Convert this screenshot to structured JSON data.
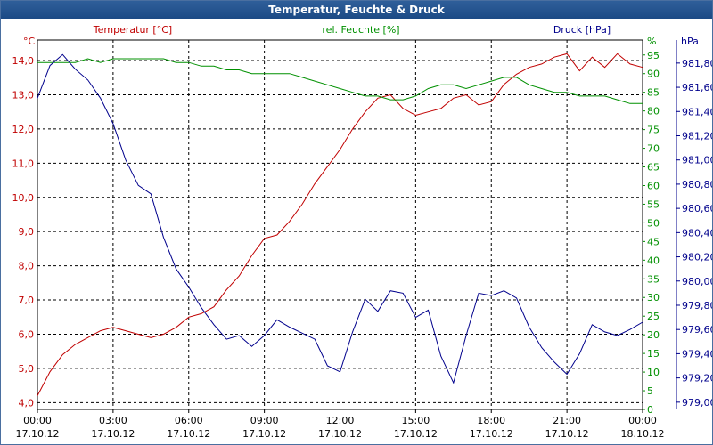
{
  "title": "Temperatur, Feuchte & Druck",
  "colors": {
    "temperature": "#c00000",
    "humidity": "#009000",
    "pressure": "#00008c",
    "grid": "#000000",
    "title_bg": "#1c4a85"
  },
  "chart_data": {
    "type": "line",
    "title": "Temperatur, Feuchte & Druck",
    "grid": true,
    "x_axis": {
      "range": [
        "17.10.12 00:00",
        "18.10.12 00:00"
      ],
      "ticks": [
        {
          "time": "00:00",
          "date": "17.10.12"
        },
        {
          "time": "03:00",
          "date": "17.10.12"
        },
        {
          "time": "06:00",
          "date": "17.10.12"
        },
        {
          "time": "09:00",
          "date": "17.10.12"
        },
        {
          "time": "12:00",
          "date": "17.10.12"
        },
        {
          "time": "15:00",
          "date": "17.10.12"
        },
        {
          "time": "18:00",
          "date": "17.10.12"
        },
        {
          "time": "21:00",
          "date": "17.10.12"
        },
        {
          "time": "00:00",
          "date": "18.10.12"
        }
      ]
    },
    "axes": {
      "temperature": {
        "label": "Temperatur [°C]",
        "unit": "°C",
        "range": [
          3.8,
          14.6
        ],
        "ticks": [
          "4,0",
          "5,0",
          "6,0",
          "7,0",
          "8,0",
          "9,0",
          "10,0",
          "11,0",
          "12,0",
          "13,0",
          "14,0"
        ],
        "tick_values": [
          4,
          5,
          6,
          7,
          8,
          9,
          10,
          11,
          12,
          13,
          14
        ]
      },
      "humidity": {
        "label": "rel. Feuchte [%]",
        "unit": "%",
        "range": [
          0,
          99
        ],
        "ticks": [
          "0",
          "5",
          "10",
          "15",
          "20",
          "25",
          "30",
          "35",
          "40",
          "45",
          "50",
          "55",
          "60",
          "65",
          "70",
          "75",
          "80",
          "85",
          "90",
          "95"
        ],
        "tick_values": [
          0,
          5,
          10,
          15,
          20,
          25,
          30,
          35,
          40,
          45,
          50,
          55,
          60,
          65,
          70,
          75,
          80,
          85,
          90,
          95
        ]
      },
      "pressure": {
        "label": "Druck [hPa]",
        "unit": "hPa",
        "range": [
          978.94,
          981.99
        ],
        "ticks": [
          "979,00",
          "979,20",
          "979,40",
          "979,60",
          "979,80",
          "980,00",
          "980,20",
          "980,40",
          "980,60",
          "980,80",
          "981,00",
          "981,20",
          "981,40",
          "981,60",
          "981,80"
        ],
        "tick_values": [
          979.0,
          979.2,
          979.4,
          979.6,
          979.8,
          980.0,
          980.2,
          980.4,
          980.6,
          980.8,
          981.0,
          981.2,
          981.4,
          981.6,
          981.8
        ]
      }
    },
    "series": [
      {
        "name": "Temperatur [°C]",
        "axis": "temperature",
        "x": [
          0,
          0.5,
          1,
          1.5,
          2,
          2.5,
          3,
          3.5,
          4,
          4.5,
          5,
          5.5,
          6,
          6.5,
          7,
          7.5,
          8,
          8.5,
          9,
          9.5,
          10,
          10.5,
          11,
          11.5,
          12,
          12.5,
          13,
          13.5,
          14,
          14.5,
          15,
          15.5,
          16,
          16.5,
          17,
          17.5,
          18,
          18.5,
          19,
          19.5,
          20,
          20.5,
          21,
          21.5,
          22,
          22.5,
          23,
          23.5,
          24
        ],
        "y": [
          4.2,
          4.9,
          5.4,
          5.7,
          5.9,
          6.1,
          6.2,
          6.1,
          6.0,
          5.9,
          6.0,
          6.2,
          6.5,
          6.6,
          6.8,
          7.3,
          7.7,
          8.3,
          8.8,
          8.9,
          9.3,
          9.8,
          10.4,
          10.9,
          11.4,
          12.0,
          12.5,
          12.9,
          13.0,
          12.6,
          12.4,
          12.5,
          12.6,
          12.9,
          13.0,
          12.7,
          12.8,
          13.3,
          13.6,
          13.8,
          13.9,
          14.1,
          14.2,
          13.7,
          14.1,
          13.8,
          14.2,
          13.9,
          13.8
        ]
      },
      {
        "name": "rel. Feuchte [%]",
        "axis": "humidity",
        "x": [
          0,
          0.5,
          1,
          1.5,
          2,
          2.5,
          3,
          3.5,
          4,
          4.5,
          5,
          5.5,
          6,
          6.5,
          7,
          7.5,
          8,
          8.5,
          9,
          9.5,
          10,
          10.5,
          11,
          11.5,
          12,
          12.5,
          13,
          13.5,
          14,
          14.5,
          15,
          15.5,
          16,
          16.5,
          17,
          17.5,
          18,
          18.5,
          19,
          19.5,
          20,
          20.5,
          21,
          21.5,
          22,
          22.5,
          23,
          23.5,
          24
        ],
        "y": [
          93,
          93,
          93,
          93,
          94,
          93,
          94,
          94,
          94,
          94,
          94,
          93,
          93,
          92,
          92,
          91,
          91,
          90,
          90,
          90,
          90,
          89,
          88,
          87,
          86,
          85,
          84,
          84,
          83,
          83,
          84,
          86,
          87,
          87,
          86,
          87,
          88,
          89,
          89,
          87,
          86,
          85,
          85,
          84,
          84,
          84,
          83,
          82,
          82
        ]
      },
      {
        "name": "Druck [hPa]",
        "axis": "pressure",
        "x": [
          0,
          0.5,
          1,
          1.5,
          2,
          2.5,
          3,
          3.5,
          4,
          4.5,
          5,
          5.5,
          6,
          6.5,
          7,
          7.5,
          8,
          8.5,
          9,
          9.5,
          10,
          10.5,
          11,
          11.5,
          12,
          12.5,
          13,
          13.5,
          14,
          14.5,
          15,
          15.5,
          16,
          16.5,
          17,
          17.5,
          18,
          18.5,
          19,
          19.5,
          20,
          20.5,
          21,
          21.5,
          22,
          22.5,
          23,
          23.5,
          24
        ],
        "y": [
          981.51,
          981.78,
          981.87,
          981.75,
          981.66,
          981.51,
          981.3,
          981.0,
          980.79,
          980.72,
          980.36,
          980.1,
          979.95,
          979.78,
          979.64,
          979.52,
          979.55,
          979.46,
          979.55,
          979.68,
          979.62,
          979.57,
          979.52,
          979.3,
          979.25,
          979.58,
          979.85,
          979.75,
          979.92,
          979.9,
          979.7,
          979.76,
          979.38,
          979.16,
          979.55,
          979.9,
          979.88,
          979.92,
          979.86,
          979.62,
          979.45,
          979.33,
          979.23,
          979.4,
          979.64,
          979.58,
          979.55,
          979.6,
          979.66
        ]
      }
    ]
  }
}
